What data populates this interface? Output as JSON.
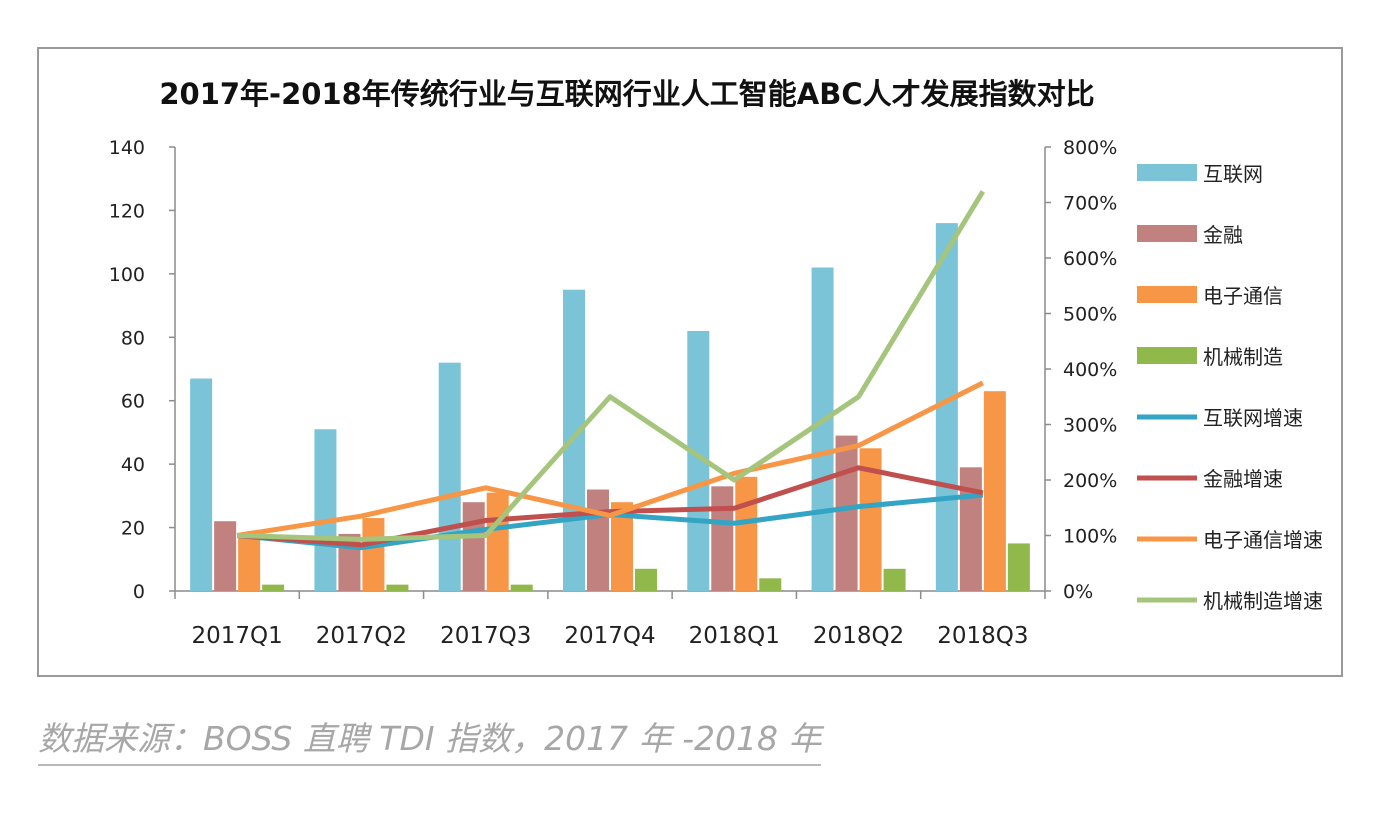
{
  "chart_data": {
    "type": "bar",
    "title": "2017年-2018年传统行业与互联网行业人工智能ABC人才发展指数对比",
    "categories": [
      "2017Q1",
      "2017Q2",
      "2017Q3",
      "2017Q4",
      "2018Q1",
      "2018Q2",
      "2018Q3"
    ],
    "y_left": {
      "ylim": [
        0,
        140
      ],
      "ticks": [
        "0",
        "20",
        "40",
        "60",
        "80",
        "100",
        "120",
        "140"
      ]
    },
    "y_right": {
      "ylim": [
        0,
        8
      ],
      "ticks": [
        "0%",
        "100%",
        "200%",
        "300%",
        "400%",
        "500%",
        "600%",
        "700%",
        "800%"
      ]
    },
    "bar_series": [
      {
        "name": "互联网",
        "color": "#7bc4d7",
        "values": [
          67,
          51,
          72,
          95,
          82,
          102,
          116
        ]
      },
      {
        "name": "金融",
        "color": "#c0817f",
        "values": [
          22,
          18,
          28,
          32,
          33,
          49,
          39
        ]
      },
      {
        "name": "电子通信",
        "color": "#f79646",
        "values": [
          17,
          23,
          31,
          28,
          36,
          45,
          63
        ]
      },
      {
        "name": "机械制造",
        "color": "#90b84b",
        "values": [
          2,
          2,
          2,
          7,
          4,
          7,
          15
        ]
      }
    ],
    "line_series": [
      {
        "name": "互联网增速",
        "color": "#33a4c4",
        "values": [
          1.0,
          0.78,
          1.11,
          1.38,
          1.22,
          1.52,
          1.73
        ]
      },
      {
        "name": "金融增速",
        "color": "#c0504d",
        "values": [
          1.0,
          0.83,
          1.27,
          1.43,
          1.49,
          2.22,
          1.77
        ]
      },
      {
        "name": "电子通信增速",
        "color": "#f79646",
        "values": [
          1.0,
          1.35,
          1.86,
          1.36,
          2.12,
          2.62,
          3.75
        ]
      },
      {
        "name": "机械制造增速",
        "color": "#a4c57b",
        "values": [
          1.0,
          0.93,
          1.0,
          3.5,
          2.0,
          3.5,
          7.2
        ]
      }
    ],
    "legend_position": "right",
    "grid": false
  },
  "source": "数据来源：BOSS 直聘 TDI 指数，2017 年 -2018 年"
}
